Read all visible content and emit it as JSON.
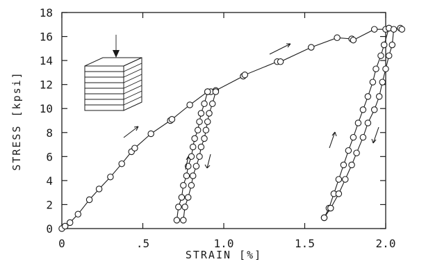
{
  "chart_data": {
    "type": "scatter",
    "xlabel": "STRAIN [%]",
    "ylabel": "STRESS [kpsi]",
    "xlim": [
      0,
      2.0
    ],
    "ylim": [
      0,
      18
    ],
    "x_ticks": [
      0,
      0.5,
      1.0,
      1.5,
      2.0
    ],
    "x_tick_labels": [
      "0",
      ".5",
      "1.0",
      "1.5",
      "2.0"
    ],
    "y_ticks": [
      0,
      2,
      4,
      6,
      8,
      10,
      12,
      14,
      16,
      18
    ],
    "y_tick_labels": [
      "0",
      "2",
      "4",
      "6",
      "8",
      "10",
      "12",
      "14",
      "16",
      "18"
    ],
    "grid": false,
    "legend": "none",
    "line_color": "#1a1a1a",
    "marker": "open-circle",
    "series": [
      {
        "values": [
          [
            0.0,
            0.0
          ],
          [
            0.02,
            0.2
          ],
          [
            0.05,
            0.5
          ],
          [
            0.1,
            1.2
          ],
          [
            0.17,
            2.4
          ],
          [
            0.23,
            3.3
          ],
          [
            0.3,
            4.3
          ],
          [
            0.37,
            5.4
          ],
          [
            0.43,
            6.4
          ],
          [
            0.45,
            6.7
          ],
          [
            0.55,
            7.9
          ],
          [
            0.67,
            9.0
          ],
          [
            0.68,
            9.1
          ],
          [
            0.79,
            10.3
          ],
          [
            0.9,
            11.4
          ],
          [
            0.92,
            11.4
          ],
          [
            0.95,
            11.5
          ],
          [
            1.12,
            12.7
          ],
          [
            1.13,
            12.8
          ],
          [
            1.33,
            13.9
          ],
          [
            1.35,
            13.9
          ],
          [
            1.54,
            15.1
          ],
          [
            1.7,
            15.9
          ],
          [
            1.79,
            15.8
          ],
          [
            1.8,
            15.7
          ],
          [
            1.93,
            16.6
          ],
          [
            2.0,
            16.6
          ],
          [
            2.02,
            16.7
          ],
          [
            2.09,
            16.7
          ],
          [
            2.1,
            16.6
          ]
        ]
      },
      {
        "values": [
          [
            0.9,
            11.4
          ],
          [
            0.88,
            10.4
          ],
          [
            0.86,
            9.6
          ],
          [
            0.85,
            8.9
          ],
          [
            0.84,
            8.2
          ],
          [
            0.82,
            7.5
          ],
          [
            0.81,
            6.8
          ],
          [
            0.8,
            6.0
          ],
          [
            0.78,
            5.2
          ],
          [
            0.77,
            4.4
          ],
          [
            0.75,
            3.6
          ],
          [
            0.74,
            2.6
          ],
          [
            0.72,
            1.8
          ],
          [
            0.71,
            0.7
          ]
        ]
      },
      {
        "values": [
          [
            0.75,
            0.7
          ],
          [
            0.76,
            1.8
          ],
          [
            0.78,
            2.6
          ],
          [
            0.8,
            3.6
          ],
          [
            0.81,
            4.4
          ],
          [
            0.83,
            5.2
          ],
          [
            0.85,
            6.0
          ],
          [
            0.86,
            6.8
          ],
          [
            0.88,
            7.5
          ],
          [
            0.89,
            8.2
          ],
          [
            0.9,
            8.9
          ],
          [
            0.91,
            9.6
          ],
          [
            0.93,
            10.4
          ],
          [
            0.95,
            11.4
          ]
        ]
      },
      {
        "values": [
          [
            2.02,
            16.7
          ],
          [
            1.99,
            15.3
          ],
          [
            1.97,
            14.4
          ],
          [
            1.94,
            13.3
          ],
          [
            1.92,
            12.2
          ],
          [
            1.89,
            11.0
          ],
          [
            1.86,
            9.9
          ],
          [
            1.83,
            8.8
          ],
          [
            1.8,
            7.6
          ],
          [
            1.77,
            6.5
          ],
          [
            1.74,
            5.3
          ],
          [
            1.71,
            4.1
          ],
          [
            1.68,
            2.9
          ],
          [
            1.65,
            1.7
          ],
          [
            1.62,
            0.9
          ]
        ]
      },
      {
        "values": [
          [
            1.62,
            0.9
          ],
          [
            1.66,
            1.7
          ],
          [
            1.71,
            2.9
          ],
          [
            1.75,
            4.1
          ],
          [
            1.79,
            5.3
          ],
          [
            1.82,
            6.3
          ],
          [
            1.86,
            7.6
          ],
          [
            1.89,
            8.8
          ],
          [
            1.93,
            9.9
          ],
          [
            1.96,
            11.0
          ],
          [
            1.98,
            12.2
          ],
          [
            2.0,
            13.3
          ],
          [
            2.02,
            14.4
          ],
          [
            2.04,
            15.3
          ],
          [
            2.05,
            16.6
          ]
        ]
      }
    ]
  }
}
